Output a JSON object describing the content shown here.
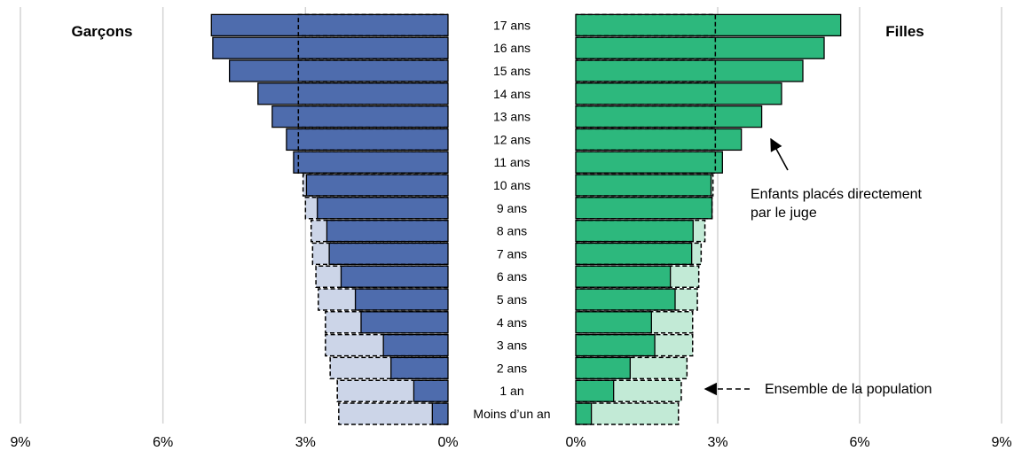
{
  "chart_data": {
    "type": "bar",
    "orientation": "horizontal",
    "layout": "population-pyramid",
    "categories": [
      "Moins d’un an",
      "1 an",
      "2 ans",
      "3 ans",
      "4 ans",
      "5 ans",
      "6 ans",
      "7 ans",
      "8 ans",
      "9 ans",
      "10 ans",
      "11 ans",
      "12 ans",
      "13 ans",
      "14 ans",
      "15 ans",
      "16 ans",
      "17 ans"
    ],
    "panels": [
      {
        "name": "Garçons",
        "side": "left",
        "color": "#4e6cad",
        "light_color": "#ccd5e8",
        "direct": [
          0.33,
          0.72,
          1.2,
          1.36,
          1.83,
          1.95,
          2.25,
          2.5,
          2.55,
          2.75,
          2.98,
          3.25,
          3.4,
          3.7,
          4.0,
          4.6,
          4.95,
          4.98
        ],
        "total": [
          2.3,
          2.33,
          2.48,
          2.58,
          2.58,
          2.73,
          2.78,
          2.85,
          2.88,
          3.0,
          3.05,
          3.15,
          3.15,
          3.15,
          3.15,
          3.15,
          3.15,
          3.15
        ]
      },
      {
        "name": "Filles",
        "side": "right",
        "color": "#2db87d",
        "light_color": "#c2ead6",
        "direct": [
          0.33,
          0.8,
          1.15,
          1.67,
          1.6,
          2.1,
          2.0,
          2.45,
          2.48,
          2.88,
          2.86,
          3.1,
          3.5,
          3.93,
          4.35,
          4.8,
          5.25,
          5.6
        ],
        "total": [
          2.17,
          2.23,
          2.35,
          2.47,
          2.47,
          2.57,
          2.6,
          2.65,
          2.73,
          2.88,
          2.9,
          2.95,
          2.95,
          2.95,
          2.95,
          2.95,
          2.95,
          2.95
        ]
      }
    ],
    "xlim": [
      0,
      9
    ],
    "xticks": [
      0,
      3,
      6,
      9
    ],
    "tick_format": "%",
    "grid": true,
    "annotations": [
      {
        "text_lines": [
          "Enfants placés directement",
          "par le juge"
        ],
        "style": "arrow",
        "target": "direct"
      },
      {
        "text_lines": [
          "Ensemble de la population"
        ],
        "style": "dashed-arrow",
        "target": "total"
      }
    ]
  }
}
